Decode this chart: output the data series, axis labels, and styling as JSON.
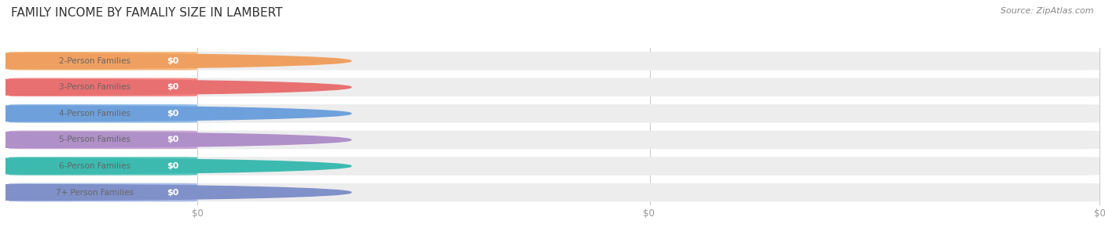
{
  "title": "FAMILY INCOME BY FAMALIY SIZE IN LAMBERT",
  "source": "Source: ZipAtlas.com",
  "categories": [
    "2-Person Families",
    "3-Person Families",
    "4-Person Families",
    "5-Person Families",
    "6-Person Families",
    "7+ Person Families"
  ],
  "values": [
    0,
    0,
    0,
    0,
    0,
    0
  ],
  "bar_colors": [
    "#F5B97F",
    "#F58A8A",
    "#92BDE8",
    "#C9A8D4",
    "#5EC8BE",
    "#A8B8E8"
  ],
  "dot_colors": [
    "#EFA060",
    "#E87070",
    "#6EA0DC",
    "#B090C8",
    "#3CBAB0",
    "#8090C8"
  ],
  "track_color": "#EDEDEE",
  "white_pill_color": "#FFFFFF",
  "category_text_color": "#666666",
  "value_text_color": "#FFFFFF",
  "title_color": "#333333",
  "source_color": "#888888",
  "background_color": "#FFFFFF",
  "bar_height": 0.7,
  "figsize": [
    14.06,
    3.05
  ],
  "dpi": 100,
  "tick_label_color": "#999999",
  "xtick_positions": [
    0.0,
    0.5,
    1.0
  ],
  "xtick_labels": [
    "$0",
    "$0",
    "$0"
  ]
}
